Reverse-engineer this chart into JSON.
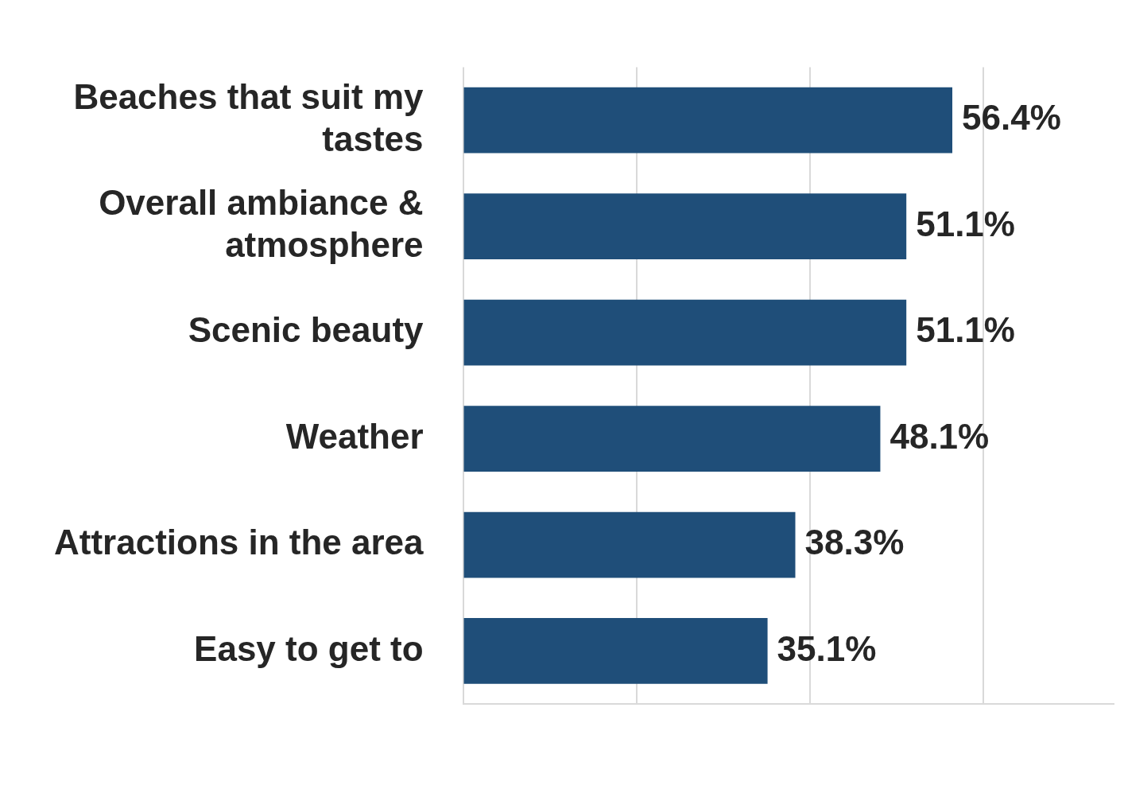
{
  "chart_data": {
    "type": "bar",
    "orientation": "horizontal",
    "categories": [
      "Beaches that suit my tastes",
      "Overall ambiance & atmosphere",
      "Scenic beauty",
      "Weather",
      "Attractions in the area",
      "Easy to get to"
    ],
    "values": [
      56.4,
      51.1,
      51.1,
      48.1,
      38.3,
      35.1
    ],
    "value_labels": [
      "56.4%",
      "51.1%",
      "51.1%",
      "48.1%",
      "38.3%",
      "35.1%"
    ],
    "color": "#1f4e79",
    "xlim": [
      0,
      75
    ],
    "xticks": [
      {
        "value": 0,
        "label": null
      },
      {
        "value": 20,
        "label": null
      },
      {
        "value": 40,
        "label": null
      },
      {
        "value": 60,
        "label": null
      }
    ],
    "grid": "x",
    "tick_labels": "y",
    "legend": false
  }
}
